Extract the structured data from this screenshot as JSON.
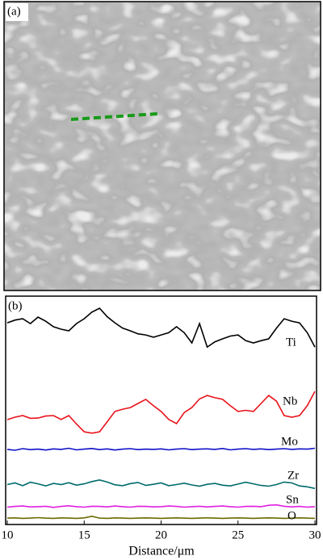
{
  "panel_a": {
    "label": "(a)"
  },
  "chart_data": {
    "type": "line",
    "panel_label": "(b)",
    "xlabel": "Distance/μm",
    "x": [
      10,
      10.5,
      11,
      11.5,
      12,
      12.5,
      13,
      13.5,
      14,
      14.5,
      15,
      15.5,
      16,
      16.5,
      17,
      17.5,
      18,
      18.5,
      19,
      19.5,
      20,
      20.5,
      21,
      21.5,
      22,
      22.5,
      23,
      23.5,
      24,
      24.5,
      25,
      25.5,
      26,
      26.5,
      27,
      27.5,
      28,
      28.5,
      29,
      29.5,
      30
    ],
    "xlim": [
      10,
      30
    ],
    "xticks": [
      10,
      15,
      20,
      25,
      30
    ],
    "ylim": [
      0,
      100
    ],
    "series": [
      {
        "name": "Ti",
        "color": "#000000",
        "values": [
          88.3,
          89.5,
          90.1,
          88.0,
          90.8,
          89.0,
          86.6,
          85.5,
          84.8,
          88.0,
          90.1,
          93.0,
          94.7,
          91.0,
          88.3,
          86.0,
          84.8,
          83.5,
          83.0,
          82.0,
          83.0,
          84.0,
          86.6,
          84.0,
          79.5,
          88.0,
          77.7,
          80.0,
          81.3,
          82.5,
          83.0,
          80.5,
          79.5,
          80.5,
          81.3,
          86.0,
          90.1,
          89.0,
          88.3,
          84.0,
          77.7
        ]
      },
      {
        "name": "Nb",
        "color": "#e8131b",
        "values": [
          45.9,
          47.0,
          47.7,
          46.5,
          46.6,
          47.5,
          47.7,
          46.0,
          47.7,
          44.0,
          40.6,
          40.0,
          40.6,
          45.0,
          49.5,
          50.5,
          51.2,
          53.0,
          54.8,
          52.0,
          49.5,
          46.0,
          44.2,
          49.0,
          51.2,
          55.0,
          56.5,
          55.5,
          54.8,
          52.0,
          49.5,
          50.0,
          49.5,
          53.0,
          56.5,
          54.0,
          47.7,
          47.0,
          47.7,
          52.0,
          58.3
        ]
      },
      {
        "name": "Mo",
        "color": "#1010c8",
        "values": [
          32.9,
          32.5,
          33.2,
          32.8,
          33.0,
          32.6,
          33.1,
          32.9,
          33.4,
          32.7,
          33.0,
          33.3,
          32.8,
          33.1,
          32.6,
          33.0,
          33.2,
          32.8,
          33.0,
          32.9,
          33.1,
          32.7,
          33.0,
          33.2,
          32.8,
          33.0,
          33.1,
          32.9,
          33.3,
          32.7,
          33.0,
          33.2,
          32.9,
          33.1,
          32.8,
          33.0,
          33.2,
          32.9,
          33.1,
          33.0,
          33.4
        ]
      },
      {
        "name": "Zr",
        "color": "#006b6b",
        "values": [
          17.5,
          18.2,
          17.0,
          18.5,
          17.8,
          16.9,
          18.0,
          17.5,
          18.3,
          17.2,
          17.8,
          18.8,
          19.5,
          18.6,
          17.4,
          17.0,
          17.9,
          18.4,
          17.1,
          17.6,
          18.2,
          17.0,
          17.5,
          18.1,
          17.3,
          16.8,
          17.6,
          18.0,
          17.2,
          16.9,
          17.7,
          18.5,
          17.8,
          17.1,
          16.8,
          17.5,
          18.6,
          18.2,
          16.9,
          16.5,
          15.8
        ]
      },
      {
        "name": "Sn",
        "color": "#e020e0",
        "values": [
          7.6,
          7.9,
          8.1,
          7.7,
          7.8,
          8.0,
          7.5,
          7.9,
          8.2,
          7.8,
          7.6,
          8.0,
          7.9,
          7.7,
          8.1,
          7.8,
          7.6,
          8.0,
          7.9,
          7.7,
          7.8,
          8.1,
          7.9,
          7.6,
          7.8,
          8.0,
          7.7,
          7.9,
          8.1,
          7.8,
          7.6,
          7.9,
          8.0,
          7.8,
          8.4,
          8.6,
          8.0,
          7.7,
          7.9,
          7.6,
          7.8
        ]
      },
      {
        "name": "O",
        "color": "#6b6b00",
        "values": [
          2.8,
          2.9,
          2.7,
          2.8,
          3.0,
          2.8,
          2.7,
          2.9,
          2.8,
          2.7,
          2.9,
          3.6,
          2.8,
          2.7,
          2.9,
          2.8,
          2.7,
          2.8,
          2.9,
          2.8,
          2.7,
          2.8,
          2.9,
          2.8,
          2.7,
          2.8,
          2.9,
          2.8,
          2.7,
          2.8,
          2.9,
          2.8,
          2.7,
          2.8,
          2.9,
          2.8,
          2.7,
          2.8,
          2.9,
          2.8,
          2.7
        ]
      }
    ]
  }
}
